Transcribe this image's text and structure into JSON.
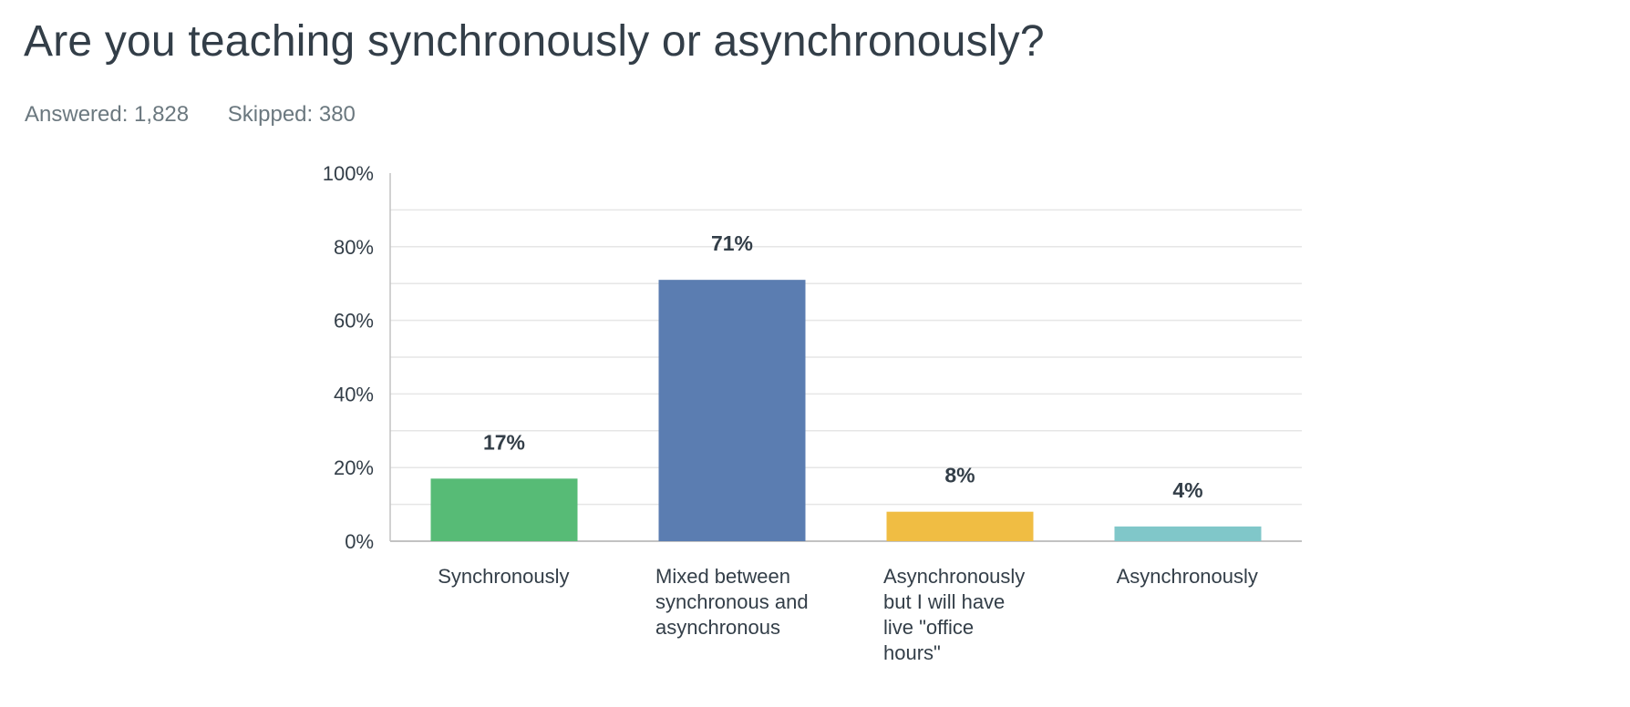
{
  "question": {
    "title": "Are you teaching synchronously or asynchronously?",
    "answered": "Answered: 1,828",
    "skipped": "Skipped: 380"
  },
  "chart_data": {
    "type": "bar",
    "categories": [
      [
        "Synchronously"
      ],
      [
        "Mixed between",
        "synchronous and",
        "asynchronous"
      ],
      [
        "Asynchronously",
        "but I will have",
        "live \"office",
        "hours\""
      ],
      [
        "Asynchronously"
      ]
    ],
    "values": [
      17,
      71,
      8,
      4
    ],
    "data_labels": [
      "17%",
      "71%",
      "8%",
      "4%"
    ],
    "colors": [
      "#57bb76",
      "#5b7db1",
      "#f0bd43",
      "#80c7c9"
    ],
    "ylim": [
      0,
      100
    ],
    "yticks": [
      0,
      20,
      40,
      60,
      80,
      100
    ],
    "ytick_labels": [
      "0%",
      "20%",
      "40%",
      "60%",
      "80%",
      "100%"
    ],
    "grid": true,
    "gridline_step": 10,
    "colors_misc": {
      "grid": "#e6e6e6",
      "axis": "#c2c2c2"
    }
  }
}
